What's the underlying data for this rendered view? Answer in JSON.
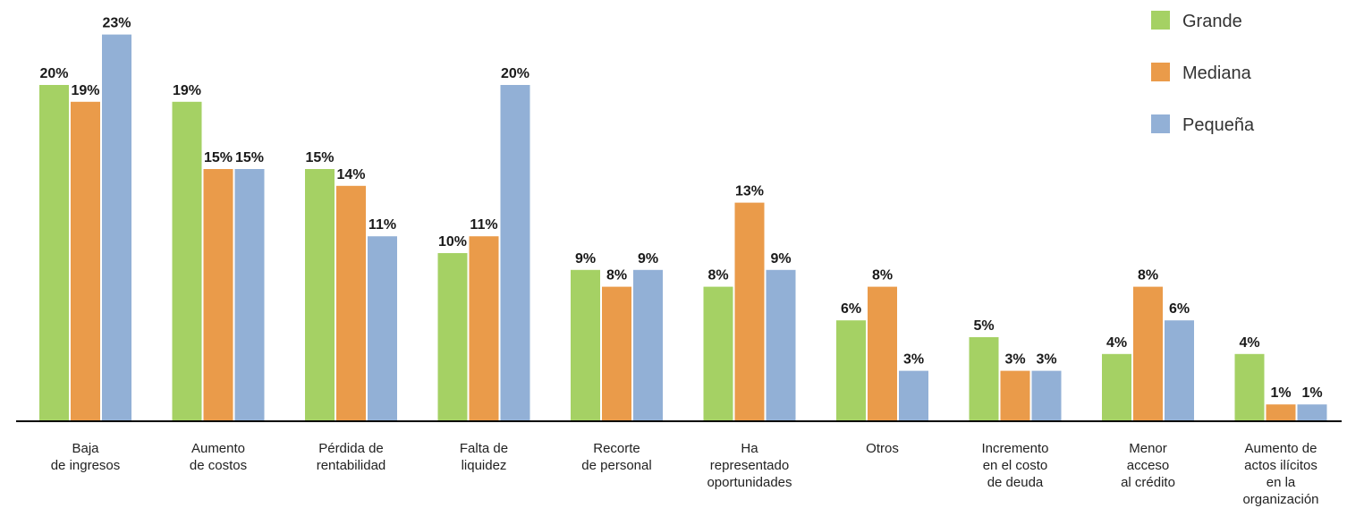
{
  "chart_data": {
    "type": "bar",
    "categories": [
      [
        "Baja",
        "de ingresos"
      ],
      [
        "Aumento",
        "de costos"
      ],
      [
        "Pérdida de",
        "rentabilidad"
      ],
      [
        "Falta de",
        "liquidez"
      ],
      [
        "Recorte",
        "de personal"
      ],
      [
        "Ha",
        "representado",
        "oportunidades"
      ],
      [
        "Otros"
      ],
      [
        "Incremento",
        "en el costo",
        "de deuda"
      ],
      [
        "Menor",
        "acceso",
        "al crédito"
      ],
      [
        "Aumento de",
        "actos ilícitos",
        "en la",
        "organización"
      ]
    ],
    "series": [
      {
        "name": "Grande",
        "color": "#a5d164",
        "values": [
          20,
          19,
          15,
          10,
          9,
          8,
          6,
          5,
          4,
          4
        ]
      },
      {
        "name": "Mediana",
        "color": "#ea9b4a",
        "values": [
          19,
          15,
          14,
          11,
          8,
          13,
          8,
          3,
          8,
          1
        ]
      },
      {
        "name": "Pequeña",
        "color": "#92b0d6",
        "values": [
          23,
          15,
          11,
          20,
          9,
          9,
          3,
          3,
          6,
          1
        ]
      }
    ],
    "value_suffix": "%",
    "ylim": [
      0,
      23
    ],
    "grid": false,
    "legend_position": "top-right",
    "title": "",
    "xlabel": "",
    "ylabel": ""
  }
}
